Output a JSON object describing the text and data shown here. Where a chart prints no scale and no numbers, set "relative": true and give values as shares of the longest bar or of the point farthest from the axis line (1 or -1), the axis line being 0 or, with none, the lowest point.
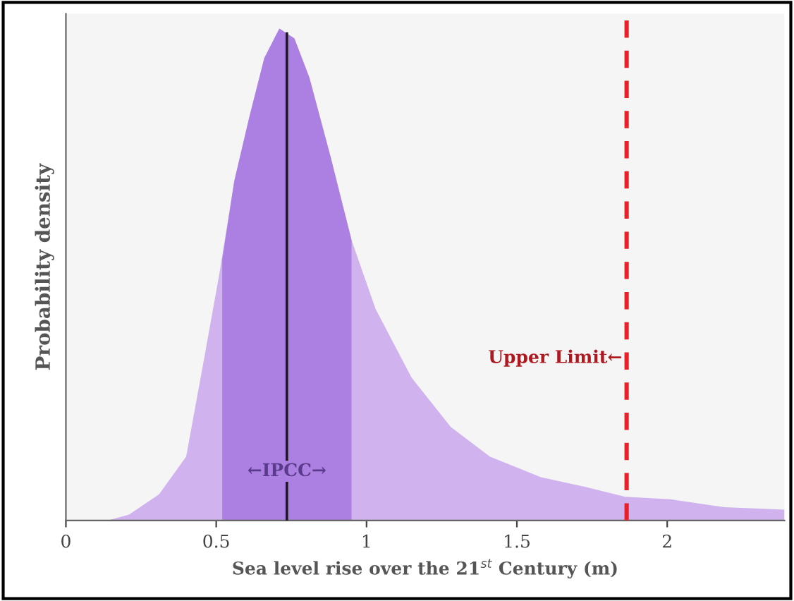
{
  "chart_data": {
    "type": "area",
    "relative": true,
    "xlabel": "Sea level rise over the 21$^{st}$ Century (m)",
    "ylabel": "Probability density",
    "x": [
      0.14,
      0.21,
      0.31,
      0.4,
      0.46,
      0.51,
      0.56,
      0.61,
      0.66,
      0.71,
      0.76,
      0.81,
      0.88,
      0.95,
      1.03,
      1.15,
      1.28,
      1.41,
      1.58,
      1.73,
      1.86,
      2.01,
      2.19,
      2.39
    ],
    "series": [
      {
        "color": "#cfb2ee",
        "values": [
          0,
          0.012,
          0.053,
          0.13,
          0.33,
          0.5,
          0.69,
          0.82,
          0.94,
          1.0,
          0.98,
          0.9,
          0.74,
          0.57,
          0.43,
          0.29,
          0.19,
          0.13,
          0.088,
          0.068,
          0.048,
          0.043,
          0.027,
          0.022
        ]
      },
      {
        "color": "#ac80e2",
        "x": [
          0.52,
          0.56,
          0.61,
          0.66,
          0.71,
          0.76,
          0.81,
          0.88,
          0.95
        ],
        "values": [
          0.53,
          0.69,
          0.82,
          0.94,
          1.0,
          0.98,
          0.9,
          0.74,
          0.57
        ]
      }
    ],
    "annotations": [
      {
        "text": "←IPCC→",
        "x": 0.735,
        "y": 0.1
      }
    ],
    "xlim": [
      0,
      2.39
    ],
    "xticks": [
      0,
      0.5,
      1,
      1.5,
      2
    ],
    "tick_labels": "x",
    "grid": false,
    "legend": false,
    "ref_lines": [
      {
        "axis": "x",
        "value": 0.735,
        "label": null,
        "color": "#1a1a1a",
        "line_style": "solid"
      },
      {
        "axis": "x",
        "value": 1.865,
        "label": "Upper Limit←",
        "color": "#e8202a",
        "line_style": "dashed"
      }
    ]
  }
}
